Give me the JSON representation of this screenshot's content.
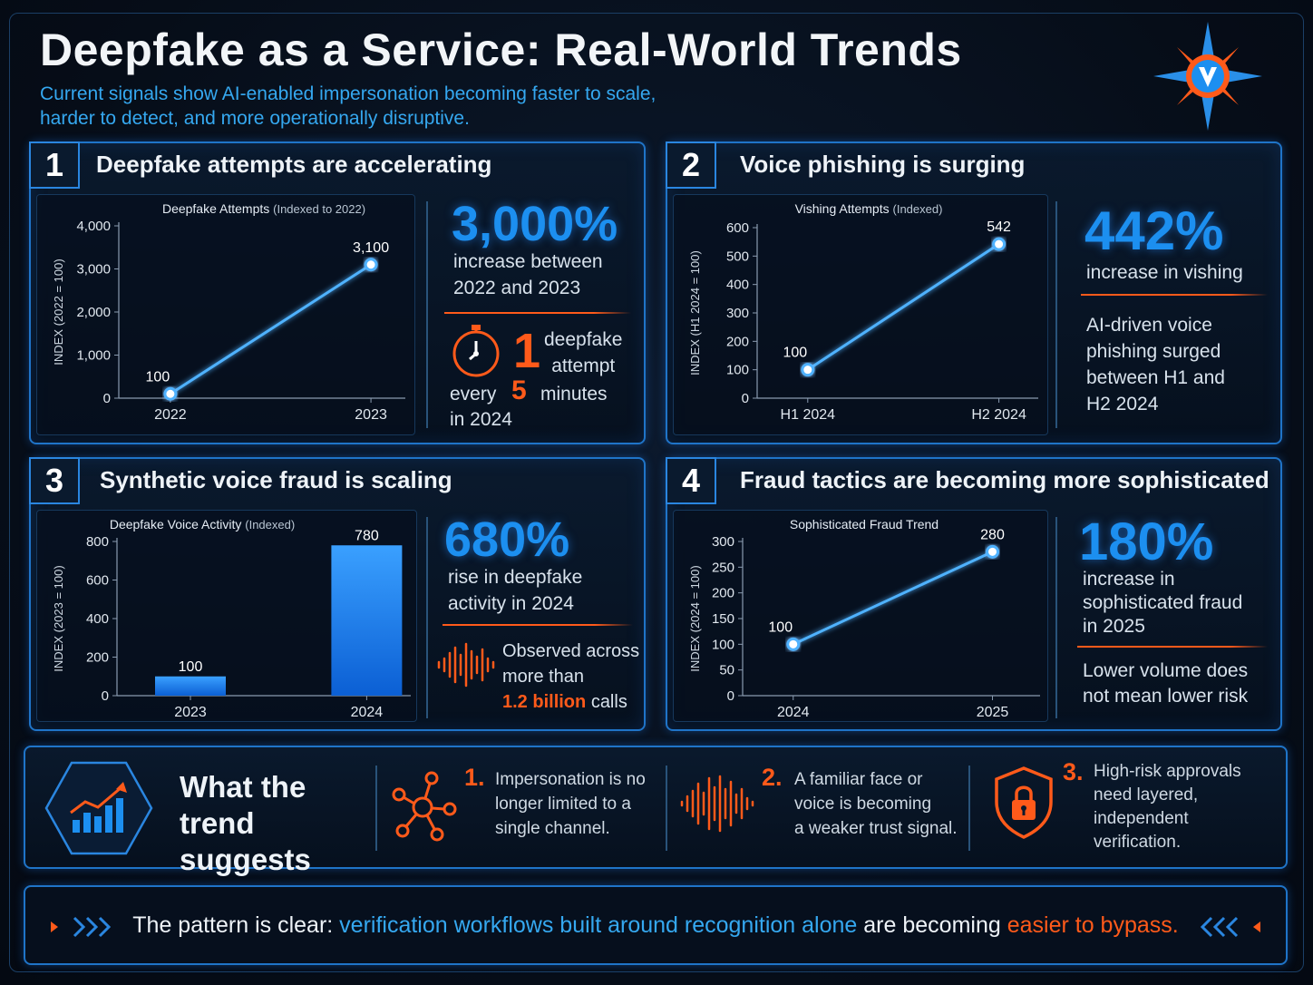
{
  "header": {
    "title": "Deepfake as a Service: Real-World Trends",
    "subtitle_line1": "Current signals show AI-enabled impersonation becoming faster to scale,",
    "subtitle_line2": "harder to detect, and more operationally disruptive."
  },
  "colors": {
    "accent_blue": "#1c8ff0",
    "accent_orange": "#ff5a1a",
    "panel_border": "#1f74c8"
  },
  "panels": [
    {
      "num": "1",
      "title": "Deepfake attempts are accelerating",
      "stat": "3,000%",
      "stat_line1": "increase between",
      "stat_line2": "2022 and 2023",
      "extra": {
        "big": "1",
        "word1": "deepfake",
        "word2": "attempt",
        "every": "every",
        "five": "5",
        "minutes": "minutes",
        "year": "in 2024"
      }
    },
    {
      "num": "2",
      "title": "Voice phishing is surging",
      "stat": "442%",
      "stat_line1": "increase in vishing",
      "desc": [
        "AI-driven voice",
        "phishing surged",
        "between H1 and",
        "H2 2024"
      ]
    },
    {
      "num": "3",
      "title": "Synthetic voice fraud is scaling",
      "stat": "680%",
      "stat_line1": "rise in deepfake",
      "stat_line2": "activity in 2024",
      "extra": {
        "line1": "Observed across",
        "line2": "more than",
        "highlight": "1.2 billion",
        "tail": "calls"
      }
    },
    {
      "num": "4",
      "title": "Fraud tactics are becoming more sophisticated",
      "stat": "180%",
      "stat_line1": "increase in",
      "stat_line2": "sophisticated fraud",
      "stat_line3": "in 2025",
      "desc": [
        "Lower volume does",
        "not mean lower risk"
      ]
    }
  ],
  "chart_data": [
    {
      "type": "line",
      "title": "Deepfake Attempts",
      "title_suffix": "(Indexed to 2022)",
      "ylabel": "INDEX (2022 = 100)",
      "categories": [
        "2022",
        "2023"
      ],
      "series": [
        {
          "values": [
            100,
            3100
          ]
        }
      ],
      "value_labels": [
        "100",
        "3,100"
      ],
      "ylim": [
        0,
        4000
      ],
      "yticks": [
        "0",
        "1,000",
        "2,000",
        "3,000",
        "4,000"
      ],
      "ytick_values": [
        0,
        1000,
        2000,
        3000,
        4000
      ]
    },
    {
      "type": "line",
      "title": "Vishing Attempts",
      "title_suffix": "(Indexed)",
      "ylabel": "INDEX (H1 2024 = 100)",
      "categories": [
        "H1 2024",
        "H2 2024"
      ],
      "series": [
        {
          "values": [
            100,
            542
          ]
        }
      ],
      "value_labels": [
        "100",
        "542"
      ],
      "ylim": [
        0,
        600
      ],
      "yticks": [
        "0",
        "100",
        "200",
        "300",
        "400",
        "500",
        "600"
      ],
      "ytick_values": [
        0,
        100,
        200,
        300,
        400,
        500,
        600
      ]
    },
    {
      "type": "bar",
      "title": "Deepfake Voice Activity",
      "title_suffix": "(Indexed)",
      "ylabel": "INDEX (2023 = 100)",
      "categories": [
        "2023",
        "2024"
      ],
      "series": [
        {
          "values": [
            100,
            780
          ]
        }
      ],
      "value_labels": [
        "100",
        "780"
      ],
      "ylim": [
        0,
        800
      ],
      "yticks": [
        "0",
        "200",
        "400",
        "600",
        "800"
      ],
      "ytick_values": [
        0,
        200,
        400,
        600,
        800
      ]
    },
    {
      "type": "line",
      "title": "Sophisticated Fraud Trend",
      "title_suffix": "",
      "ylabel": "INDEX (2024 = 100)",
      "categories": [
        "2024",
        "2025"
      ],
      "series": [
        {
          "values": [
            100,
            280
          ]
        }
      ],
      "value_labels": [
        "100",
        "280"
      ],
      "ylim": [
        0,
        300
      ],
      "yticks": [
        "0",
        "50",
        "100",
        "150",
        "200",
        "250",
        "300"
      ],
      "ytick_values": [
        0,
        50,
        100,
        150,
        200,
        250,
        300
      ]
    }
  ],
  "suggestions": {
    "title_line1": "What the",
    "title_line2": "trend suggests",
    "items": [
      {
        "num": "1.",
        "lines": [
          "Impersonation is no",
          "longer limited to a",
          "single channel."
        ]
      },
      {
        "num": "2.",
        "lines": [
          "A familiar face or",
          "voice is becoming",
          "a weaker trust signal."
        ]
      },
      {
        "num": "3.",
        "lines": [
          "High-risk approvals",
          "need layered,",
          "independent",
          "verification."
        ]
      }
    ]
  },
  "footer": {
    "lead": "The pattern is clear:",
    "blue": "verification workflows built around recognition alone",
    "mid": "are becoming",
    "orange": "easier to bypass."
  }
}
